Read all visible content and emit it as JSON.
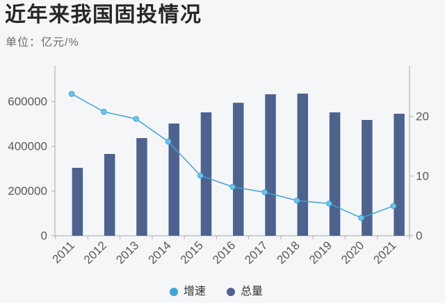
{
  "chart_data": {
    "type": "bar",
    "title": "近年来我国固投情况",
    "subtitle": "单位：亿元/%",
    "categories": [
      "2011",
      "2012",
      "2013",
      "2014",
      "2015",
      "2016",
      "2017",
      "2018",
      "2019",
      "2020",
      "2021"
    ],
    "series": [
      {
        "name": "增速",
        "type": "line",
        "axis": "right",
        "color": "#3ea2d6",
        "values": [
          23.8,
          20.8,
          19.6,
          15.8,
          10.1,
          8.2,
          7.3,
          5.9,
          5.4,
          3.0,
          5.0
        ]
      },
      {
        "name": "总量",
        "type": "bar",
        "axis": "left",
        "color": "#4e628e",
        "values": [
          304000,
          366000,
          437000,
          502000,
          552000,
          595000,
          633000,
          636000,
          552000,
          518000,
          546000
        ]
      }
    ],
    "y_left": {
      "ticks": [
        0,
        200000,
        400000,
        600000
      ],
      "range": [
        0,
        760000
      ]
    },
    "y_right": {
      "ticks": [
        0,
        10,
        20
      ],
      "range": [
        0,
        28.5
      ]
    },
    "grid": false,
    "legend": "bottom",
    "background": "#f5f6f8"
  }
}
